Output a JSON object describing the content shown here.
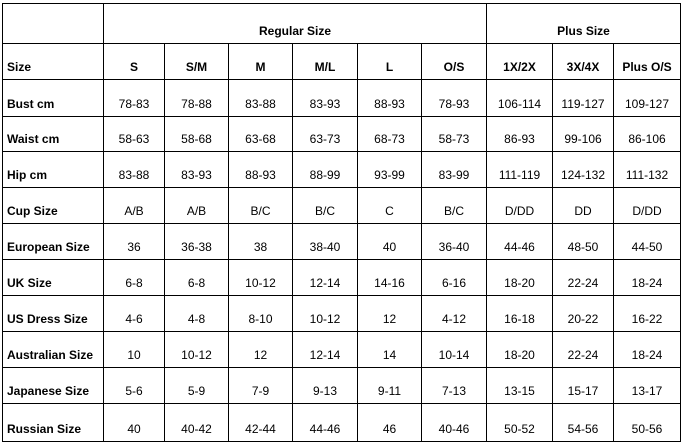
{
  "header": {
    "regular": "Regular Size",
    "plus": "Plus Size"
  },
  "columns": [
    "Size",
    "S",
    "S/M",
    "M",
    "M/L",
    "L",
    "O/S",
    "1X/2X",
    "3X/4X",
    "Plus O/S"
  ],
  "rows": [
    {
      "label": "Bust cm",
      "values": [
        "78-83",
        "78-88",
        "83-88",
        "83-93",
        "88-93",
        "78-93",
        "106-114",
        "119-127",
        "109-127"
      ]
    },
    {
      "label": "Waist cm",
      "values": [
        "58-63",
        "58-68",
        "63-68",
        "63-73",
        "68-73",
        "58-73",
        "86-93",
        "99-106",
        "86-106"
      ]
    },
    {
      "label": "Hip cm",
      "values": [
        "83-88",
        "83-93",
        "88-93",
        "88-99",
        "93-99",
        "83-99",
        "111-119",
        "124-132",
        "111-132"
      ]
    },
    {
      "label": "Cup Size",
      "values": [
        "A/B",
        "A/B",
        "B/C",
        "B/C",
        "C",
        "B/C",
        "D/DD",
        "DD",
        "D/DD"
      ]
    },
    {
      "label": "European Size",
      "values": [
        "36",
        "36-38",
        "38",
        "38-40",
        "40",
        "36-40",
        "44-46",
        "48-50",
        "44-50"
      ]
    },
    {
      "label": "UK Size",
      "values": [
        "6-8",
        "6-8",
        "10-12",
        "12-14",
        "14-16",
        "6-16",
        "18-20",
        "22-24",
        "18-24"
      ]
    },
    {
      "label": "US Dress Size",
      "values": [
        "4-6",
        "4-8",
        "8-10",
        "10-12",
        "12",
        "4-12",
        "16-18",
        "20-22",
        "16-22"
      ]
    },
    {
      "label": "Australian Size",
      "values": [
        "10",
        "10-12",
        "12",
        "12-14",
        "14",
        "10-14",
        "18-20",
        "22-24",
        "18-24"
      ]
    },
    {
      "label": "Japanese Size",
      "values": [
        "5-6",
        "5-9",
        "7-9",
        "9-13",
        "9-11",
        "7-13",
        "13-15",
        "15-17",
        "13-17"
      ]
    },
    {
      "label": "Russian Size",
      "values": [
        "40",
        "40-42",
        "42-44",
        "44-46",
        "46",
        "40-46",
        "50-52",
        "54-56",
        "50-56"
      ]
    }
  ]
}
